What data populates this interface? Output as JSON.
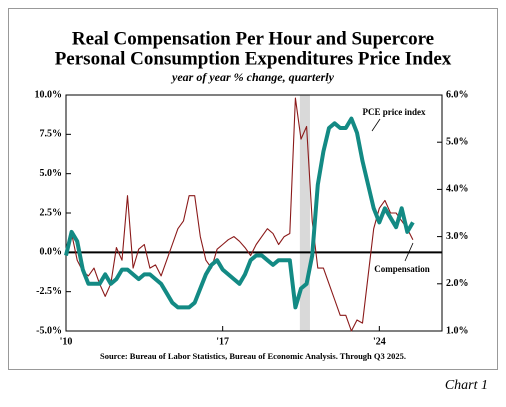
{
  "chart_data": {
    "type": "line",
    "title": [
      "Real Compensation Per Hour and Supercore",
      "Personal Consumption Expenditures Price Index"
    ],
    "subtitle": "year of year % change, quarterly",
    "source": "Source:  Bureau of Labor Statistics, Bureau of Economic Analysis. Through Q3 2025.",
    "footer": "Chart 1",
    "x": [
      2010,
      2010.25,
      2010.5,
      2010.75,
      2011,
      2011.25,
      2011.5,
      2011.75,
      2012,
      2012.25,
      2012.5,
      2012.75,
      2013,
      2013.25,
      2013.5,
      2013.75,
      2014,
      2014.25,
      2014.5,
      2014.75,
      2015,
      2015.25,
      2015.5,
      2015.75,
      2016,
      2016.25,
      2016.5,
      2016.75,
      2017,
      2017.25,
      2017.5,
      2017.75,
      2018,
      2018.25,
      2018.5,
      2018.75,
      2019,
      2019.25,
      2019.5,
      2019.75,
      2020,
      2020.25,
      2020.5,
      2020.75,
      2021,
      2021.25,
      2021.5,
      2021.75,
      2022,
      2022.25,
      2022.5,
      2022.75,
      2023,
      2023.25,
      2023.5,
      2023.75,
      2024,
      2024.25,
      2024.5,
      2024.75,
      2025,
      2025.25,
      2025.5
    ],
    "xlim": [
      2010,
      2026.8
    ],
    "xticks": [
      {
        "value": 2010,
        "label": "'10"
      },
      {
        "value": 2017,
        "label": "'17"
      },
      {
        "value": 2024,
        "label": "'24"
      }
    ],
    "ylim": [
      -5,
      10
    ],
    "yticks": [
      {
        "value": 10,
        "label": "10.0%"
      },
      {
        "value": 7.5,
        "label": "7.5%"
      },
      {
        "value": 5,
        "label": "5.0%"
      },
      {
        "value": 2.5,
        "label": "2.5%"
      },
      {
        "value": 0,
        "label": "0.0%"
      },
      {
        "value": -2.5,
        "label": "-2.5%"
      },
      {
        "value": -5,
        "label": "-5.0%"
      }
    ],
    "y2lim": [
      1,
      6
    ],
    "y2ticks": [
      {
        "value": 6,
        "label": "6.0%"
      },
      {
        "value": 5,
        "label": "5.0%"
      },
      {
        "value": 4,
        "label": "4.0%"
      },
      {
        "value": 3,
        "label": "3.0%"
      },
      {
        "value": 2,
        "label": "2.0%"
      },
      {
        "value": 1,
        "label": "1.0%"
      }
    ],
    "zero_line": true,
    "shaded_span": [
      2020.45,
      2020.9
    ],
    "series": [
      {
        "name": "Compensation",
        "color": "#8b1a1a",
        "axis": "y",
        "values": [
          0.2,
          1.2,
          -0.5,
          -1.2,
          -1.5,
          -1.0,
          -2.0,
          -2.8,
          -2.0,
          0.3,
          -0.5,
          3.6,
          -1.0,
          0.2,
          0.5,
          -1.0,
          -0.8,
          -1.5,
          -0.5,
          0.5,
          1.5,
          2.0,
          3.6,
          3.6,
          1.0,
          -0.5,
          -1.0,
          0.2,
          0.5,
          0.8,
          1.0,
          0.7,
          0.3,
          -0.2,
          0.5,
          1.0,
          1.5,
          1.2,
          0.5,
          1.0,
          1.2,
          9.8,
          7.2,
          8.0,
          2.0,
          -1.0,
          -1.0,
          -2.0,
          -3.0,
          -4.0,
          -4.0,
          -5.0,
          -4.3,
          -4.5,
          -1.5,
          1.5,
          2.8,
          3.3,
          2.5,
          2.5,
          2.0,
          1.5,
          0.8
        ]
      },
      {
        "name": "PCE price index",
        "color": "#138a84",
        "axis": "y2",
        "values": [
          2.6,
          3.1,
          2.9,
          2.3,
          2.0,
          2.0,
          2.0,
          2.2,
          2.0,
          2.1,
          2.3,
          2.3,
          2.2,
          2.1,
          2.2,
          2.2,
          2.1,
          2.0,
          1.8,
          1.6,
          1.5,
          1.5,
          1.5,
          1.6,
          1.9,
          2.2,
          2.4,
          2.5,
          2.3,
          2.2,
          2.1,
          2.0,
          2.2,
          2.5,
          2.6,
          2.6,
          2.5,
          2.4,
          2.5,
          2.5,
          2.5,
          1.5,
          1.9,
          2.0,
          2.6,
          4.1,
          4.8,
          5.3,
          5.4,
          5.3,
          5.3,
          5.5,
          5.2,
          4.6,
          4.1,
          3.6,
          3.3,
          3.6,
          3.4,
          3.2,
          3.6,
          3.1,
          3.3
        ]
      }
    ],
    "annotations": [
      {
        "text": "PCE price index"
      },
      {
        "text": "Compensation"
      }
    ]
  }
}
